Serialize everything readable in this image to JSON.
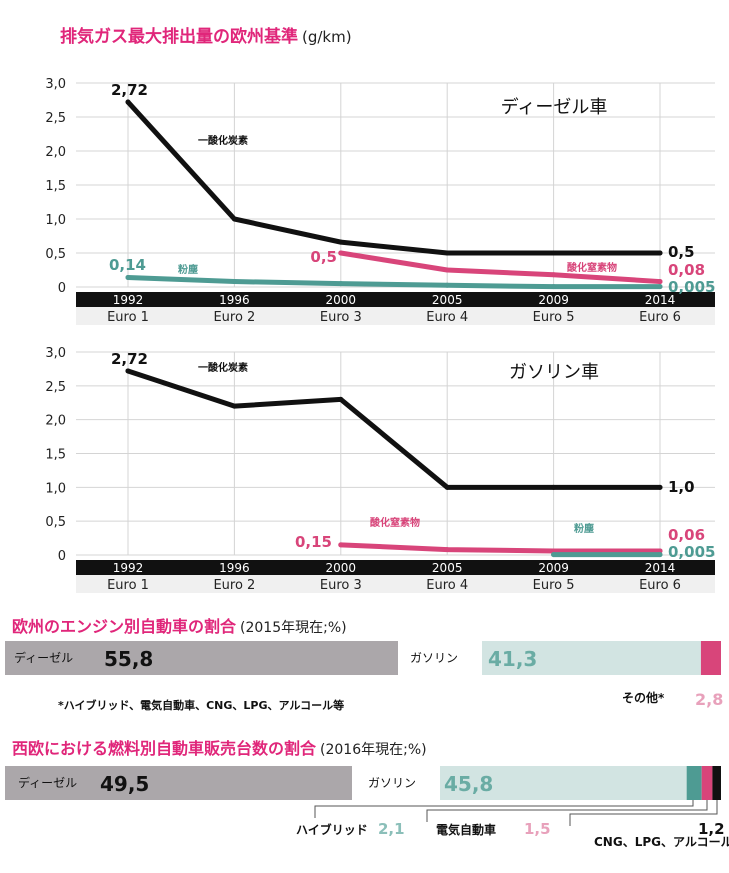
{
  "title": "排気ガス最大排出量の欧州基準",
  "title_unit": "(g/km)",
  "colors": {
    "co": "#111111",
    "nox": "#d8457a",
    "pm": "#4e9b93",
    "bar": "#111111",
    "accent": "#e0267a",
    "diesel_bar": "#aba7aa",
    "gasoline_bar": "#d2e4e2"
  },
  "chart_data": [
    {
      "type": "line",
      "title": "ディーゼル車",
      "categories": [
        "1992",
        "1996",
        "2000",
        "2005",
        "2009",
        "2014"
      ],
      "sub_labels": [
        "Euro 1",
        "Euro 2",
        "Euro 3",
        "Euro 4",
        "Euro 5",
        "Euro 6"
      ],
      "yticks": [
        "3,0",
        "2,5",
        "2,0",
        "1,5",
        "1,0",
        "0,5",
        "0"
      ],
      "ylim": [
        0,
        3.0
      ],
      "grid": true,
      "series": [
        {
          "name": "一酸化炭素",
          "color_key": "co",
          "values": [
            2.72,
            1.0,
            0.66,
            0.5,
            0.5,
            0.5
          ],
          "start_label": "2,72",
          "end_label": "0,5"
        },
        {
          "name": "酸化窒素物",
          "color_key": "nox",
          "values": [
            null,
            null,
            0.5,
            0.25,
            0.18,
            0.08
          ],
          "start_label": "0,5",
          "end_label": "0,08"
        },
        {
          "name": "粉塵",
          "color_key": "pm",
          "values": [
            0.14,
            0.08,
            0.05,
            0.025,
            0.005,
            0.005
          ],
          "start_label": "0,14",
          "end_label": "0,005"
        }
      ]
    },
    {
      "type": "line",
      "title": "ガソリン車",
      "categories": [
        "1992",
        "1996",
        "2000",
        "2005",
        "2009",
        "2014"
      ],
      "sub_labels": [
        "Euro 1",
        "Euro 2",
        "Euro 3",
        "Euro 4",
        "Euro 5",
        "Euro 6"
      ],
      "yticks": [
        "3,0",
        "2,5",
        "2,0",
        "1,5",
        "1,0",
        "0,5",
        "0"
      ],
      "ylim": [
        0,
        3.0
      ],
      "grid": true,
      "series": [
        {
          "name": "一酸化炭素",
          "color_key": "co",
          "values": [
            2.72,
            2.2,
            2.3,
            1.0,
            1.0,
            1.0
          ],
          "start_label": "2,72",
          "end_label": "1,0"
        },
        {
          "name": "酸化窒素物",
          "color_key": "nox",
          "values": [
            null,
            null,
            0.15,
            0.08,
            0.06,
            0.06
          ],
          "start_label": "0,15",
          "end_label": "0,06"
        },
        {
          "name": "粉塵",
          "color_key": "pm",
          "values": [
            null,
            null,
            null,
            null,
            0.005,
            0.005
          ],
          "start_label": "",
          "end_label": "0,005"
        }
      ]
    },
    {
      "type": "bar",
      "title": "欧州のエンジン別自動車の割合",
      "subtitle": "(2015年現在;%)",
      "segments": [
        {
          "name": "ディーゼル",
          "value": 55.8,
          "label": "55,8",
          "color_key": "diesel_bar"
        },
        {
          "name": "ガソリン",
          "value": 41.3,
          "label": "41,3",
          "color_key": "gasoline_bar"
        },
        {
          "name": "その他*",
          "value": 2.8,
          "label": "2,8",
          "color_key": "nox"
        }
      ]
    },
    {
      "type": "bar",
      "title": "西欧における燃料別自動車販売台数の割合",
      "subtitle": "(2016年現在;%)",
      "segments": [
        {
          "name": "ディーゼル",
          "value": 49.5,
          "label": "49,5",
          "color_key": "diesel_bar"
        },
        {
          "name": "ガソリン",
          "value": 45.8,
          "label": "45,8",
          "color_key": "gasoline_bar"
        },
        {
          "name": "ハイブリッド",
          "value": 2.1,
          "label": "2,1",
          "color_key": "pm"
        },
        {
          "name": "電気自動車",
          "value": 1.5,
          "label": "1,5",
          "color_key": "nox"
        },
        {
          "name": "CNG、LPG、アルコール",
          "value": 1.2,
          "label": "1,2",
          "color_key": "co"
        }
      ]
    }
  ],
  "footnote": "*ハイブリッド、電気自動車、CNG、LPG、アルコール等"
}
